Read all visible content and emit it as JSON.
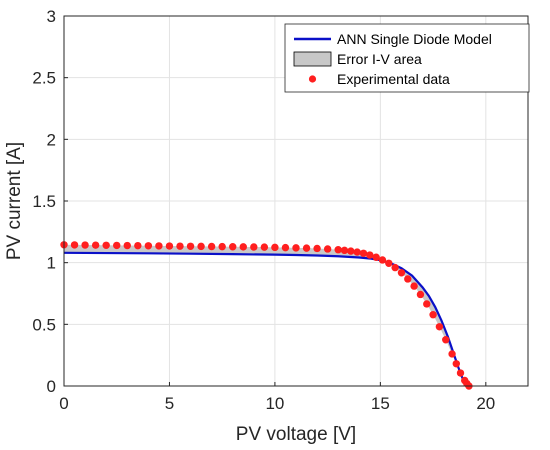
{
  "chart_data": {
    "type": "line",
    "xlabel": "PV voltage [V]",
    "ylabel": "PV current [A]",
    "xlim": [
      0,
      22
    ],
    "ylim": [
      0,
      3
    ],
    "xticks": [
      "0",
      "5",
      "10",
      "15",
      "20"
    ],
    "yticks": [
      "0",
      "0.5",
      "1",
      "1.5",
      "2",
      "2.5",
      "3"
    ],
    "grid": true,
    "legend_position": "top-right",
    "series": [
      {
        "name": "ANN Single Diode Model",
        "kind": "line",
        "color": "#0a10c8",
        "x": [
          0,
          2,
          4,
          6,
          8,
          10,
          11,
          12,
          13,
          14,
          14.5,
          15,
          15.5,
          16,
          16.5,
          17,
          17.3,
          17.6,
          17.9,
          18.2,
          18.5,
          18.7,
          18.9,
          19.05,
          19.2
        ],
        "y": [
          1.08,
          1.078,
          1.076,
          1.073,
          1.069,
          1.065,
          1.062,
          1.058,
          1.052,
          1.042,
          1.034,
          1.02,
          0.995,
          0.955,
          0.895,
          0.8,
          0.73,
          0.64,
          0.53,
          0.4,
          0.25,
          0.15,
          0.06,
          0.02,
          0.0
        ]
      },
      {
        "name": "Error I-V area",
        "kind": "area",
        "color": "#c8c8c8"
      },
      {
        "name": "Experimental data",
        "kind": "scatter",
        "color": "#ff1f1f",
        "x": [
          0,
          0.5,
          1,
          1.5,
          2,
          2.5,
          3,
          3.5,
          4,
          4.5,
          5,
          5.5,
          6,
          6.5,
          7,
          7.5,
          8,
          8.5,
          9,
          9.5,
          10,
          10.5,
          11,
          11.5,
          12,
          12.5,
          13,
          13.3,
          13.6,
          13.9,
          14.2,
          14.5,
          14.8,
          15.1,
          15.4,
          15.7,
          16,
          16.3,
          16.6,
          16.9,
          17.2,
          17.5,
          17.8,
          18.1,
          18.4,
          18.6,
          18.8,
          19,
          19.1,
          19.2
        ],
        "y": [
          1.145,
          1.144,
          1.143,
          1.142,
          1.141,
          1.14,
          1.139,
          1.138,
          1.137,
          1.136,
          1.135,
          1.134,
          1.133,
          1.132,
          1.131,
          1.13,
          1.129,
          1.128,
          1.127,
          1.126,
          1.124,
          1.122,
          1.12,
          1.118,
          1.115,
          1.111,
          1.105,
          1.1,
          1.094,
          1.086,
          1.076,
          1.062,
          1.044,
          1.022,
          0.995,
          0.96,
          0.918,
          0.868,
          0.81,
          0.742,
          0.665,
          0.578,
          0.48,
          0.375,
          0.26,
          0.18,
          0.105,
          0.045,
          0.02,
          0.0
        ]
      }
    ]
  }
}
